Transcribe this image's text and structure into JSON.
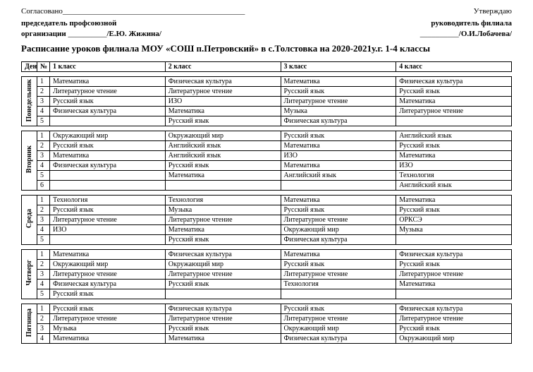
{
  "header": {
    "agreed": "Согласовано_______________________________________________",
    "approved": "Утверждаю",
    "left1": "председатель ",
    "left1b": "профсоюзной",
    "left2a": "организации ",
    "left2b": "__________",
    "left2c": "/Е.Ю. Жижина/",
    "right1": "руководитель филиала",
    "right2a": "__________",
    "right2b": "/О.И.Лобачева/",
    "title": "Расписание уроков филиала МОУ «СОШ п.Петровский» в с.Толстовка на 2020-2021у.г. 1-4 классы"
  },
  "columns": {
    "day": "День",
    "num": "№",
    "c1": "1 класс",
    "c2": "2 класс",
    "c3": "3 класс",
    "c4": "4 класс"
  },
  "schedule": [
    {
      "day": "Понедельник",
      "rows": [
        [
          "1",
          "Математика",
          "Физическая культура",
          "Математика",
          "Физическая культура"
        ],
        [
          "2",
          "Литературное чтение",
          "Литературное чтение",
          "Русский язык",
          "Русский язык"
        ],
        [
          "3",
          "Русский язык",
          "ИЗО",
          "Литературное чтение",
          "Математика"
        ],
        [
          "4",
          "Физическая культура",
          "Математика",
          "Музыка",
          "Литературное чтение"
        ],
        [
          "5",
          "",
          "Русский язык",
          "Физическая культура",
          ""
        ]
      ]
    },
    {
      "day": "Вторник",
      "rows": [
        [
          "1",
          "Окружающий мир",
          "Окружающий мир",
          "Русский язык",
          "Английский язык"
        ],
        [
          "2",
          "Русский язык",
          "Английский язык",
          "Математика",
          "Русский язык"
        ],
        [
          "3",
          "Математика",
          "Английский язык",
          "ИЗО",
          "Математика"
        ],
        [
          "4",
          "Физическая культура",
          "Русский язык",
          "Математика",
          "ИЗО"
        ],
        [
          "5",
          "",
          "Математика",
          "Английский язык",
          "Технология"
        ],
        [
          "6",
          "",
          "",
          "",
          "Английский язык"
        ]
      ]
    },
    {
      "day": "Среда",
      "rows": [
        [
          "1",
          "Технология",
          "Технология",
          "Математика",
          "Математика"
        ],
        [
          "2",
          "Русский язык",
          "Музыка",
          "Русский язык",
          "Русский язык"
        ],
        [
          "3",
          "Литературное чтение",
          "Литературное чтение",
          "Литературное чтение",
          "ОРКСЭ"
        ],
        [
          "4",
          "ИЗО",
          "Математика",
          "Окружающий мир",
          "Музыка"
        ],
        [
          "5",
          "",
          "Русский язык",
          "Физическая культура",
          ""
        ]
      ]
    },
    {
      "day": "Четверг",
      "rows": [
        [
          "1",
          "Математика",
          "Физическая культура",
          "Математика",
          "Физическая культура"
        ],
        [
          "2",
          "Окружающий мир",
          "Окружающий мир",
          "Русский язык",
          "Русский язык"
        ],
        [
          "3",
          "Литературное чтение",
          "Литературное чтение",
          "Литературное чтение",
          "Литературное чтение"
        ],
        [
          "4",
          "Физическая культура",
          "Русский язык",
          "Технология",
          "Математика"
        ],
        [
          "5",
          "Русский язык",
          "",
          "",
          ""
        ]
      ]
    },
    {
      "day": "Пятница",
      "rows": [
        [
          "1",
          "Русский язык",
          "Физическая культура",
          "Русский язык",
          "Физическая культура"
        ],
        [
          "2",
          "Литературное чтение",
          "Литературное чтение",
          "Литературное чтение",
          "Литературное чтение"
        ],
        [
          "3",
          "Музыка",
          "Русский язык",
          "Окружающий мир",
          "Русский язык"
        ],
        [
          "4",
          "Математика",
          "Математика",
          "Физическая культура",
          "Окружающий мир"
        ]
      ]
    }
  ]
}
